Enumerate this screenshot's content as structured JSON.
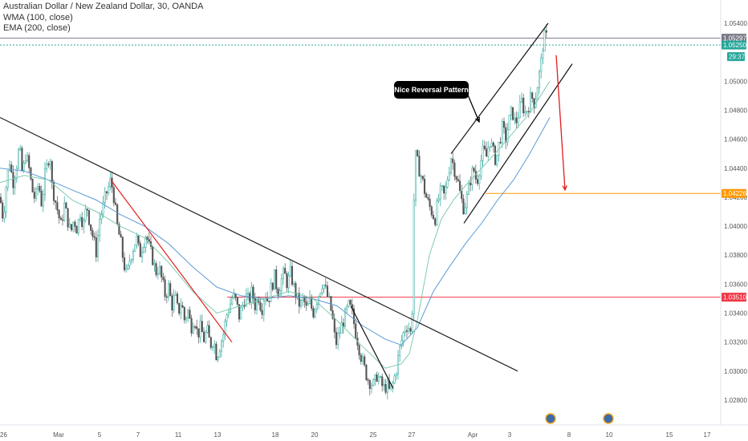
{
  "header": {
    "title": "Australian Dollar / New Zealand Dollar, 30, OANDA",
    "indicator_wma": "WMA (100, close)",
    "indicator_ema": "EMA (200, close)"
  },
  "annotation": {
    "callout": "Nice Reversal Pattern"
  },
  "price_axis": {
    "ticks": [
      "1.05400",
      "1.05000",
      "1.04800",
      "1.04600",
      "1.04400",
      "1.04200",
      "1.04000",
      "1.03800",
      "1.03600",
      "1.03400",
      "1.03200",
      "1.03000",
      "1.02800"
    ],
    "markers": [
      {
        "label": "1.05297",
        "value": 1.05297,
        "color": "#787b86"
      },
      {
        "label": "1.05250",
        "value": 1.0525,
        "color": "#26a69a"
      },
      {
        "label": "29:37",
        "value": 1.0517,
        "color": "#26a69a"
      },
      {
        "label": "1.04226",
        "value": 1.04226,
        "color": "#ff9800"
      },
      {
        "label": "1.03510",
        "value": 1.0351,
        "color": "#f23645"
      }
    ]
  },
  "time_axis": {
    "labels": [
      "26",
      "Mar",
      "5",
      "7",
      "11",
      "13",
      "18",
      "20",
      "25",
      "27",
      "Apr",
      "3",
      "8",
      "10",
      "15",
      "17"
    ]
  },
  "chart_data": {
    "type": "candlestick",
    "title": "Australian Dollar / New Zealand Dollar, 30, OANDA",
    "y_range": [
      1.0272,
      1.0552
    ],
    "close_path": [
      [
        0,
        1.042
      ],
      [
        4,
        1.0405
      ],
      [
        8,
        1.043
      ],
      [
        12,
        1.0445
      ],
      [
        16,
        1.043
      ],
      [
        20,
        1.044
      ],
      [
        24,
        1.0455
      ],
      [
        28,
        1.0435
      ],
      [
        32,
        1.045
      ],
      [
        36,
        1.044
      ],
      [
        40,
        1.0425
      ],
      [
        44,
        1.0418
      ],
      [
        48,
        1.043
      ],
      [
        52,
        1.0415
      ],
      [
        56,
        1.0435
      ],
      [
        60,
        1.0445
      ],
      [
        62,
        1.0455
      ],
      [
        64,
        1.043
      ],
      [
        68,
        1.042
      ],
      [
        72,
        1.041
      ],
      [
        76,
        1.04
      ],
      [
        80,
        1.0415
      ],
      [
        84,
        1.0405
      ],
      [
        88,
        1.0395
      ],
      [
        92,
        1.0405
      ],
      [
        96,
        1.0398
      ],
      [
        100,
        1.041
      ],
      [
        104,
        1.04
      ],
      [
        108,
        1.0415
      ],
      [
        112,
        1.0402
      ],
      [
        116,
        1.0392
      ],
      [
        120,
        1.0382
      ],
      [
        124,
        1.0405
      ],
      [
        128,
        1.0412
      ],
      [
        132,
        1.0422
      ],
      [
        136,
        1.0428
      ],
      [
        138,
        1.0432
      ],
      [
        142,
        1.042
      ],
      [
        146,
        1.04
      ],
      [
        150,
        1.039
      ],
      [
        154,
        1.0375
      ],
      [
        158,
        1.0365
      ],
      [
        162,
        1.0378
      ],
      [
        166,
        1.0385
      ],
      [
        170,
        1.0392
      ],
      [
        174,
        1.038
      ],
      [
        178,
        1.0388
      ],
      [
        182,
        1.0395
      ],
      [
        186,
        1.0385
      ],
      [
        190,
        1.0378
      ],
      [
        194,
        1.0368
      ],
      [
        198,
        1.0372
      ],
      [
        202,
        1.0362
      ],
      [
        206,
        1.0352
      ],
      [
        210,
        1.0358
      ],
      [
        214,
        1.0345
      ],
      [
        218,
        1.0352
      ],
      [
        222,
        1.034
      ],
      [
        226,
        1.0348
      ],
      [
        230,
        1.0335
      ],
      [
        234,
        1.0342
      ],
      [
        238,
        1.033
      ],
      [
        242,
        1.0338
      ],
      [
        246,
        1.0325
      ],
      [
        250,
        1.033
      ],
      [
        254,
        1.0322
      ],
      [
        258,
        1.0328
      ],
      [
        262,
        1.0318
      ],
      [
        266,
        1.0322
      ],
      [
        270,
        1.031
      ],
      [
        274,
        1.0318
      ],
      [
        278,
        1.0325
      ],
      [
        282,
        1.0338
      ],
      [
        286,
        1.0345
      ],
      [
        290,
        1.0352
      ],
      [
        294,
        1.0348
      ],
      [
        298,
        1.0338
      ],
      [
        302,
        1.0345
      ],
      [
        306,
        1.0352
      ],
      [
        310,
        1.0348
      ],
      [
        314,
        1.0355
      ],
      [
        318,
        1.0345
      ],
      [
        322,
        1.0352
      ],
      [
        326,
        1.0342
      ],
      [
        330,
        1.0355
      ],
      [
        334,
        1.0348
      ],
      [
        338,
        1.0358
      ],
      [
        342,
        1.0365
      ],
      [
        346,
        1.0355
      ],
      [
        350,
        1.0362
      ],
      [
        354,
        1.0368
      ],
      [
        358,
        1.036
      ],
      [
        362,
        1.0368
      ],
      [
        366,
        1.0358
      ],
      [
        370,
        1.035
      ],
      [
        374,
        1.0345
      ],
      [
        378,
        1.035
      ],
      [
        382,
        1.0342
      ],
      [
        386,
        1.0348
      ],
      [
        390,
        1.034
      ],
      [
        394,
        1.0348
      ],
      [
        398,
        1.0355
      ],
      [
        402,
        1.0362
      ],
      [
        406,
        1.0355
      ],
      [
        410,
        1.0348
      ],
      [
        414,
        1.0338
      ],
      [
        418,
        1.0318
      ],
      [
        422,
        1.0325
      ],
      [
        426,
        1.0332
      ],
      [
        430,
        1.0338
      ],
      [
        434,
        1.0345
      ],
      [
        438,
        1.0342
      ],
      [
        442,
        1.033
      ],
      [
        446,
        1.032
      ],
      [
        450,
        1.031
      ],
      [
        454,
        1.0302
      ],
      [
        458,
        1.0295
      ],
      [
        462,
        1.0292
      ],
      [
        466,
        1.029
      ],
      [
        470,
        1.0298
      ],
      [
        474,
        1.0292
      ],
      [
        478,
        1.0288
      ],
      [
        482,
        1.029
      ],
      [
        486,
        1.0285
      ],
      [
        490,
        1.0292
      ],
      [
        494,
        1.0302
      ],
      [
        498,
        1.0315
      ],
      [
        502,
        1.0325
      ],
      [
        506,
        1.0332
      ],
      [
        510,
        1.033
      ],
      [
        513,
        1.0322
      ],
      [
        516,
        1.0425
      ],
      [
        518,
        1.0448
      ],
      [
        522,
        1.044
      ],
      [
        526,
        1.0432
      ],
      [
        530,
        1.0422
      ],
      [
        534,
        1.0415
      ],
      [
        538,
        1.041
      ],
      [
        542,
        1.0405
      ],
      [
        546,
        1.0418
      ],
      [
        550,
        1.0425
      ],
      [
        554,
        1.042
      ],
      [
        558,
        1.0435
      ],
      [
        562,
        1.0448
      ],
      [
        566,
        1.044
      ],
      [
        570,
        1.0432
      ],
      [
        574,
        1.042
      ],
      [
        578,
        1.0412
      ],
      [
        582,
        1.042
      ],
      [
        586,
        1.0432
      ],
      [
        590,
        1.044
      ],
      [
        594,
        1.043
      ],
      [
        598,
        1.0442
      ],
      [
        602,
        1.0452
      ],
      [
        606,
        1.0448
      ],
      [
        610,
        1.046
      ],
      [
        614,
        1.0452
      ],
      [
        618,
        1.0445
      ],
      [
        622,
        1.0458
      ],
      [
        626,
        1.0468
      ],
      [
        630,
        1.046
      ],
      [
        634,
        1.0472
      ],
      [
        638,
        1.048
      ],
      [
        642,
        1.047
      ],
      [
        646,
        1.0478
      ],
      [
        650,
        1.0486
      ],
      [
        654,
        1.0478
      ],
      [
        658,
        1.0482
      ],
      [
        662,
        1.049
      ],
      [
        666,
        1.0485
      ],
      [
        670,
        1.0498
      ],
      [
        674,
        1.0512
      ],
      [
        677,
        1.0528
      ],
      [
        680,
        1.0532
      ],
      [
        683,
        1.0525
      ]
    ],
    "ema_200": [
      [
        0,
        1.044
      ],
      [
        30,
        1.0438
      ],
      [
        60,
        1.0432
      ],
      [
        90,
        1.0425
      ],
      [
        120,
        1.0418
      ],
      [
        150,
        1.0408
      ],
      [
        180,
        1.04
      ],
      [
        210,
        1.0388
      ],
      [
        240,
        1.0372
      ],
      [
        270,
        1.0358
      ],
      [
        300,
        1.0352
      ],
      [
        330,
        1.035
      ],
      [
        360,
        1.0352
      ],
      [
        390,
        1.035
      ],
      [
        420,
        1.0345
      ],
      [
        450,
        1.0332
      ],
      [
        480,
        1.0322
      ],
      [
        500,
        1.0318
      ],
      [
        520,
        1.033
      ],
      [
        540,
        1.0355
      ],
      [
        560,
        1.0372
      ],
      [
        580,
        1.0388
      ],
      [
        600,
        1.0402
      ],
      [
        620,
        1.0418
      ],
      [
        640,
        1.0432
      ],
      [
        660,
        1.045
      ],
      [
        685,
        1.0475
      ]
    ],
    "wma_100": [
      [
        0,
        1.043
      ],
      [
        30,
        1.0435
      ],
      [
        60,
        1.0432
      ],
      [
        90,
        1.0418
      ],
      [
        120,
        1.041
      ],
      [
        150,
        1.04
      ],
      [
        180,
        1.0392
      ],
      [
        210,
        1.0375
      ],
      [
        240,
        1.0355
      ],
      [
        270,
        1.034
      ],
      [
        300,
        1.0345
      ],
      [
        330,
        1.035
      ],
      [
        360,
        1.0355
      ],
      [
        390,
        1.035
      ],
      [
        420,
        1.0335
      ],
      [
        450,
        1.0318
      ],
      [
        480,
        1.0302
      ],
      [
        500,
        1.0305
      ],
      [
        510,
        1.0312
      ],
      [
        520,
        1.0335
      ],
      [
        535,
        1.038
      ],
      [
        550,
        1.0405
      ],
      [
        565,
        1.0418
      ],
      [
        580,
        1.0428
      ],
      [
        600,
        1.044
      ],
      [
        620,
        1.0452
      ],
      [
        640,
        1.0465
      ],
      [
        660,
        1.0478
      ],
      [
        685,
        1.05
      ]
    ],
    "horizontal_levels": [
      {
        "value": 1.05297,
        "color": "#787b86",
        "style": "solid"
      },
      {
        "value": 1.0525,
        "color": "#26a69a",
        "style": "dotted"
      },
      {
        "value": 1.04226,
        "color": "#ff9800",
        "from_x": 605
      },
      {
        "value": 1.0351,
        "color": "#f23645",
        "from_x": 283
      }
    ],
    "trend_lines": [
      {
        "name": "major-downtrend",
        "color": "#222",
        "from": [
          0,
          1.0475
        ],
        "to": [
          645,
          1.03
        ]
      },
      {
        "name": "red-decline",
        "color": "#e01e1e",
        "from": [
          138,
          1.0432
        ],
        "to": [
          289,
          1.032
        ]
      },
      {
        "name": "black-decline",
        "color": "#111",
        "from": [
          437,
          1.0345
        ],
        "to": [
          490,
          1.0288
        ]
      },
      {
        "name": "channel-upper",
        "color": "#111",
        "from": [
          562,
          1.045
        ],
        "to": [
          683,
          1.054
        ]
      },
      {
        "name": "channel-lower",
        "color": "#111",
        "from": [
          578,
          1.0402
        ],
        "to": [
          713,
          1.0512
        ]
      }
    ],
    "arrows": [
      {
        "name": "callout-pointer",
        "color": "#000",
        "from": [
          578,
          1.0497
        ],
        "to": [
          597,
          1.0472
        ]
      },
      {
        "name": "forecast-arrow",
        "color": "#e01e1e",
        "from": [
          693,
          1.0518
        ],
        "to": [
          704,
          1.0425
        ]
      }
    ]
  }
}
